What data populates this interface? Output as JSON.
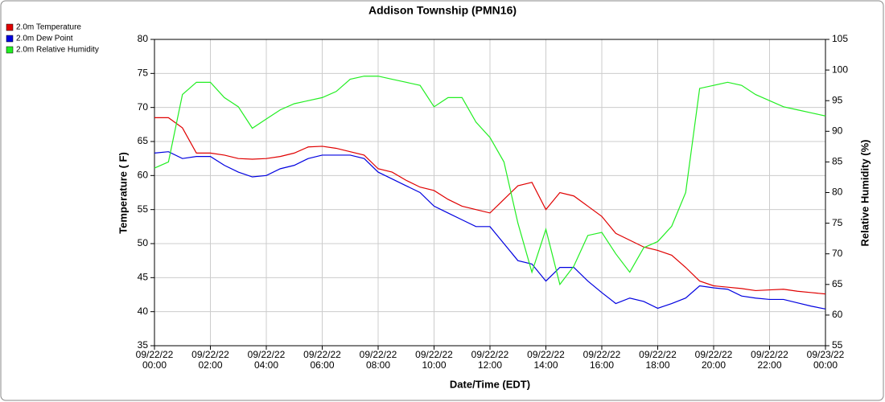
{
  "chart_data": {
    "type": "line",
    "title": "Addison Township (PMN16)",
    "x_label": "Date/Time (EDT)",
    "y_label": "Temperature ( F)",
    "y2_label": "Relative Humidity (%)",
    "x": [
      "09/22/22 00:00",
      "09/22/22 00:30",
      "09/22/22 01:00",
      "09/22/22 01:30",
      "09/22/22 02:00",
      "09/22/22 02:30",
      "09/22/22 03:00",
      "09/22/22 03:30",
      "09/22/22 04:00",
      "09/22/22 04:30",
      "09/22/22 05:00",
      "09/22/22 05:30",
      "09/22/22 06:00",
      "09/22/22 06:30",
      "09/22/22 07:00",
      "09/22/22 07:30",
      "09/22/22 08:00",
      "09/22/22 08:30",
      "09/22/22 09:00",
      "09/22/22 09:30",
      "09/22/22 10:00",
      "09/22/22 10:30",
      "09/22/22 11:00",
      "09/22/22 11:30",
      "09/22/22 12:00",
      "09/22/22 12:30",
      "09/22/22 13:00",
      "09/22/22 13:30",
      "09/22/22 14:00",
      "09/22/22 14:30",
      "09/22/22 15:00",
      "09/22/22 15:30",
      "09/22/22 16:00",
      "09/22/22 16:30",
      "09/22/22 17:00",
      "09/22/22 17:30",
      "09/22/22 18:00",
      "09/22/22 18:30",
      "09/22/22 19:00",
      "09/22/22 19:30",
      "09/22/22 20:00",
      "09/22/22 20:30",
      "09/22/22 21:00",
      "09/22/22 21:30",
      "09/22/22 22:00",
      "09/22/22 22:30",
      "09/22/22 23:00",
      "09/22/22 23:30",
      "09/23/22 00:00"
    ],
    "xticks": [
      "09/22/22 00:00",
      "09/22/22 02:00",
      "09/22/22 04:00",
      "09/22/22 06:00",
      "09/22/22 08:00",
      "09/22/22 10:00",
      "09/22/22 12:00",
      "09/22/22 14:00",
      "09/22/22 16:00",
      "09/22/22 18:00",
      "09/22/22 20:00",
      "09/22/22 22:00",
      "09/23/22 00:00"
    ],
    "ylim": [
      35,
      80
    ],
    "yticks": [
      35,
      40,
      45,
      50,
      55,
      60,
      65,
      70,
      75,
      80
    ],
    "y2lim": [
      55,
      105
    ],
    "y2ticks": [
      55,
      60,
      65,
      70,
      75,
      80,
      85,
      90,
      95,
      100,
      105
    ],
    "grid": true,
    "legend": "top-left",
    "series": [
      {
        "name": "2.0m Temperature",
        "color": "#e00000",
        "values": [
          68.5,
          68.5,
          67,
          63.3,
          63.3,
          63,
          62.5,
          62.4,
          62.5,
          62.8,
          63.3,
          64.2,
          64.3,
          64,
          63.5,
          63,
          61,
          60.5,
          59.3,
          58.3,
          57.8,
          56.5,
          55.5,
          55,
          54.5,
          56.5,
          58.5,
          59,
          55,
          57.5,
          57,
          55.5,
          54,
          51.5,
          50.5,
          49.5,
          49,
          48.3,
          46.5,
          44.5,
          43.8,
          43.6,
          43.4,
          43.1,
          43.2,
          43.3,
          43,
          42.8,
          42.6
        ]
      },
      {
        "name": "2.0m Dew Point",
        "color": "#0000e0",
        "values": [
          63.3,
          63.5,
          62.5,
          62.8,
          62.8,
          61.5,
          60.5,
          59.8,
          60,
          61,
          61.5,
          62.5,
          63,
          63,
          63,
          62.5,
          60.5,
          59.5,
          58.5,
          57.5,
          55.5,
          54.5,
          53.5,
          52.5,
          52.5,
          50,
          47.5,
          47,
          44.5,
          46.5,
          46.5,
          44.5,
          42.8,
          41.2,
          42,
          41.5,
          40.5,
          41.2,
          42,
          43.8,
          43.5,
          43.3,
          42.3,
          42,
          41.8,
          41.8,
          41.3,
          40.8,
          40.4
        ]
      },
      {
        "name": "2.0m Relative Humidity",
        "color": "#22ee22",
        "axis": "y2",
        "values": [
          84,
          85,
          96,
          98,
          98,
          95.5,
          94,
          90.5,
          92,
          93.5,
          94.5,
          95,
          95.5,
          96.5,
          98.5,
          99,
          99,
          98.5,
          98,
          97.5,
          94,
          95.5,
          95.5,
          91.5,
          89,
          85,
          75,
          67,
          74,
          65,
          68,
          73,
          73.5,
          70,
          67,
          71,
          72,
          74.5,
          80,
          97,
          97.5,
          98,
          97.5,
          96,
          95,
          94,
          93.5,
          93,
          92.5
        ]
      }
    ]
  }
}
